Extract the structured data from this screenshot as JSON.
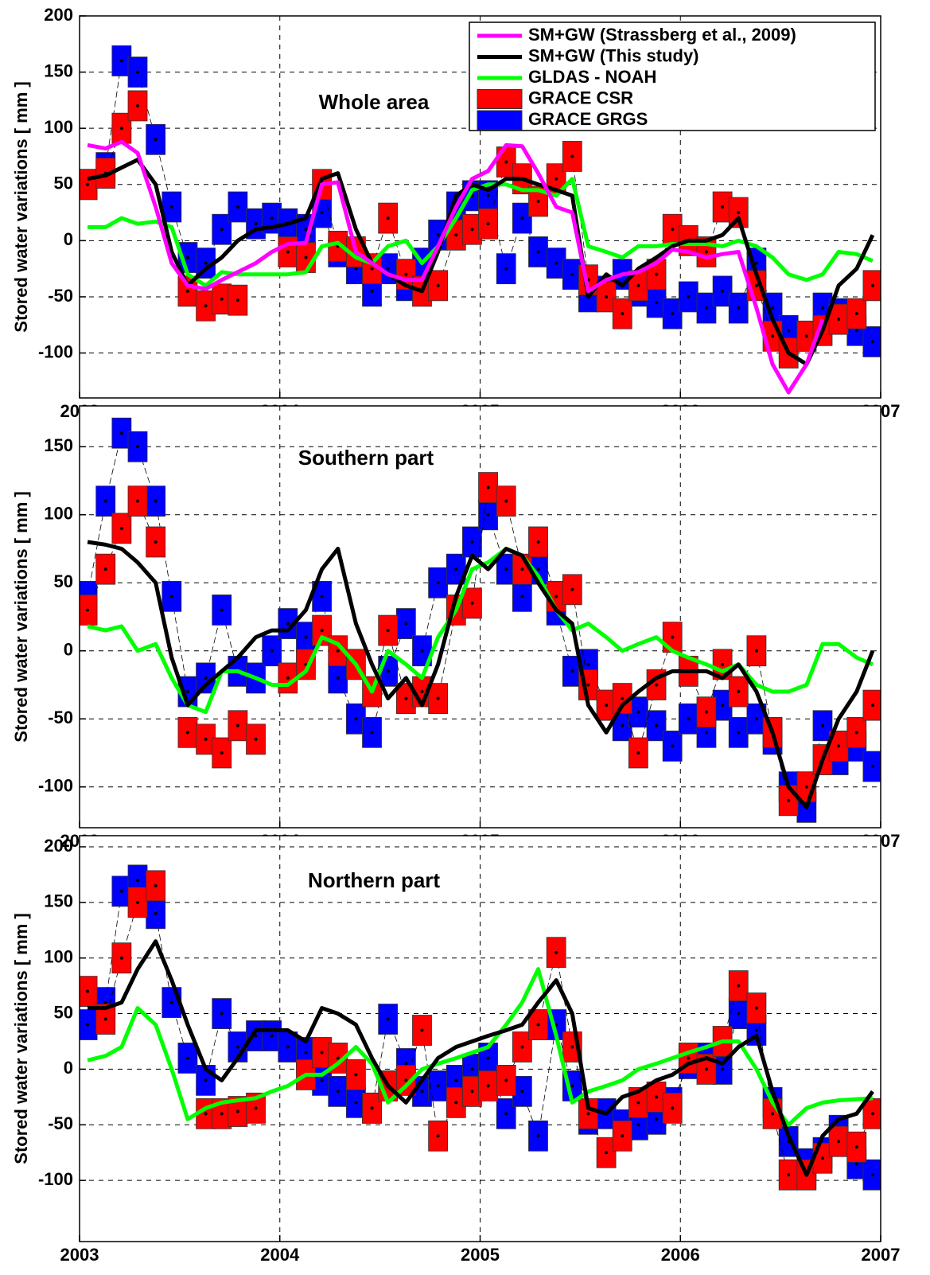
{
  "chart_data": [
    {
      "type": "line",
      "title": "Whole area",
      "ylabel": "Stored water variations [ mm ]",
      "xlim": [
        2003,
        2007
      ],
      "xticks": [
        2003,
        2004,
        2005,
        2006,
        2007
      ],
      "ylim": [
        -140,
        200
      ],
      "yticks": [
        -100,
        -50,
        0,
        50,
        100,
        150,
        200
      ],
      "grid": true,
      "legend": "upper right",
      "x": [
        2003.04,
        2003.13,
        2003.21,
        2003.29,
        2003.38,
        2003.46,
        2003.54,
        2003.63,
        2003.71,
        2003.79,
        2003.88,
        2003.96,
        2004.04,
        2004.13,
        2004.21,
        2004.29,
        2004.38,
        2004.46,
        2004.54,
        2004.63,
        2004.71,
        2004.79,
        2004.88,
        2004.96,
        2005.04,
        2005.13,
        2005.21,
        2005.29,
        2005.38,
        2005.46,
        2005.54,
        2005.63,
        2005.71,
        2005.79,
        2005.88,
        2005.96,
        2006.04,
        2006.13,
        2006.21,
        2006.29,
        2006.38,
        2006.46,
        2006.54,
        2006.63,
        2006.71,
        2006.79,
        2006.88,
        2006.96
      ],
      "series": [
        {
          "name": "SM+GW (Strassberg et al., 2009)",
          "color": "#ff00ff",
          "mark": "line",
          "values": [
            85,
            82,
            88,
            78,
            30,
            -20,
            -40,
            -43,
            -35,
            -28,
            -20,
            -10,
            -3,
            -2,
            50,
            52,
            -10,
            -20,
            -30,
            -35,
            -35,
            -5,
            30,
            55,
            62,
            85,
            84,
            60,
            30,
            25,
            -45,
            -35,
            -30,
            -28,
            -20,
            -8,
            -10,
            -15,
            -12,
            -10,
            -60,
            -110,
            -135,
            -110,
            -70,
            null,
            null,
            null
          ]
        },
        {
          "name": "SM+GW (This study)",
          "color": "#000000",
          "mark": "line",
          "values": [
            55,
            58,
            65,
            72,
            50,
            -10,
            -40,
            -25,
            -15,
            0,
            10,
            12,
            15,
            20,
            55,
            60,
            10,
            -20,
            -30,
            -40,
            -45,
            -10,
            40,
            50,
            45,
            55,
            55,
            50,
            45,
            40,
            -50,
            -30,
            -40,
            -25,
            -15,
            -5,
            0,
            0,
            5,
            20,
            -30,
            -70,
            -100,
            -110,
            -80,
            -40,
            -25,
            5
          ]
        },
        {
          "name": "GLDAS - NOAH",
          "color": "#00ff00",
          "mark": "line",
          "values": [
            12,
            12,
            20,
            15,
            17,
            12,
            -30,
            -40,
            -28,
            -30,
            -30,
            -30,
            -30,
            -28,
            -5,
            -2,
            -15,
            -20,
            -5,
            0,
            -20,
            -5,
            20,
            45,
            50,
            50,
            45,
            45,
            40,
            55,
            -5,
            -10,
            -15,
            -5,
            -5,
            -3,
            -3,
            -3,
            -5,
            0,
            -5,
            -15,
            -30,
            -35,
            -30,
            -10,
            -12,
            -18
          ]
        },
        {
          "name": "GRACE CSR",
          "color": "#ff0000",
          "mark": "box",
          "values": [
            50,
            60,
            100,
            120,
            null,
            null,
            -45,
            -58,
            -52,
            -53,
            null,
            null,
            -10,
            -15,
            50,
            -5,
            -10,
            -25,
            20,
            -30,
            -45,
            -40,
            5,
            10,
            15,
            70,
            55,
            35,
            55,
            75,
            -35,
            -50,
            -65,
            -40,
            -30,
            10,
            0,
            -10,
            30,
            25,
            -40,
            -85,
            -100,
            -85,
            -80,
            -70,
            -65,
            -40
          ]
        },
        {
          "name": "GRACE GRGS",
          "color": "#0000ff",
          "mark": "box",
          "values": [
            50,
            65,
            160,
            150,
            90,
            30,
            -15,
            -20,
            10,
            30,
            15,
            20,
            15,
            10,
            25,
            -10,
            -25,
            -45,
            -25,
            -40,
            -20,
            5,
            30,
            40,
            40,
            -25,
            20,
            -10,
            -20,
            -30,
            -50,
            -45,
            -30,
            -45,
            -55,
            -65,
            -50,
            -60,
            -45,
            -60,
            -20,
            -60,
            -80,
            -85,
            -60,
            -65,
            -80,
            -90
          ]
        }
      ]
    },
    {
      "type": "line",
      "title": "Southern part",
      "ylabel": "Stored water variations [ mm ]",
      "xlim": [
        2003,
        2007
      ],
      "xticks": [
        2003,
        2004,
        2005,
        2006,
        2007
      ],
      "ylim": [
        -130,
        180
      ],
      "yticks": [
        -100,
        -50,
        0,
        50,
        100,
        150
      ],
      "grid": true,
      "x": [
        2003.04,
        2003.13,
        2003.21,
        2003.29,
        2003.38,
        2003.46,
        2003.54,
        2003.63,
        2003.71,
        2003.79,
        2003.88,
        2003.96,
        2004.04,
        2004.13,
        2004.21,
        2004.29,
        2004.38,
        2004.46,
        2004.54,
        2004.63,
        2004.71,
        2004.79,
        2004.88,
        2004.96,
        2005.04,
        2005.13,
        2005.21,
        2005.29,
        2005.38,
        2005.46,
        2005.54,
        2005.63,
        2005.71,
        2005.79,
        2005.88,
        2005.96,
        2006.04,
        2006.13,
        2006.21,
        2006.29,
        2006.38,
        2006.46,
        2006.54,
        2006.63,
        2006.71,
        2006.79,
        2006.88,
        2006.96
      ],
      "series": [
        {
          "color": "#000000",
          "mark": "line",
          "values": [
            80,
            78,
            75,
            65,
            50,
            -5,
            -40,
            -25,
            -15,
            -5,
            10,
            15,
            15,
            30,
            60,
            75,
            20,
            -10,
            -35,
            -20,
            -40,
            -10,
            40,
            70,
            60,
            75,
            70,
            50,
            30,
            20,
            -40,
            -60,
            -40,
            -30,
            -20,
            -15,
            -15,
            -15,
            -20,
            -10,
            -30,
            -60,
            -100,
            -115,
            -80,
            -50,
            -30,
            0
          ]
        },
        {
          "color": "#00ff00",
          "mark": "line",
          "values": [
            18,
            15,
            18,
            0,
            5,
            -20,
            -40,
            -45,
            -15,
            -15,
            -20,
            -25,
            -25,
            -15,
            10,
            5,
            -10,
            -30,
            0,
            -10,
            -20,
            10,
            30,
            60,
            65,
            75,
            70,
            55,
            30,
            15,
            20,
            10,
            0,
            5,
            10,
            0,
            -5,
            -10,
            -15,
            -10,
            -25,
            -30,
            -30,
            -25,
            5,
            5,
            -5,
            -10
          ]
        },
        {
          "color": "#ff0000",
          "mark": "box",
          "values": [
            30,
            60,
            90,
            110,
            80,
            null,
            -60,
            -65,
            -75,
            -55,
            -65,
            null,
            -20,
            -10,
            15,
            0,
            -10,
            -30,
            15,
            -35,
            -30,
            -35,
            30,
            35,
            120,
            110,
            60,
            80,
            40,
            45,
            -25,
            -40,
            -35,
            -75,
            -25,
            10,
            -15,
            -45,
            -10,
            -30,
            0,
            -60,
            -110,
            -100,
            -80,
            -70,
            -60,
            -40
          ]
        },
        {
          "color": "#0000ff",
          "mark": "box",
          "values": [
            40,
            110,
            160,
            150,
            110,
            40,
            -30,
            -20,
            30,
            -15,
            -20,
            0,
            20,
            10,
            40,
            -20,
            -50,
            -60,
            -15,
            20,
            0,
            50,
            60,
            80,
            100,
            60,
            40,
            60,
            30,
            -15,
            -10,
            -40,
            -55,
            -45,
            -55,
            -70,
            -50,
            -60,
            -40,
            -60,
            -50,
            -65,
            -100,
            -115,
            -55,
            -80,
            -70,
            -85
          ]
        }
      ]
    },
    {
      "type": "line",
      "title": "Northern part",
      "ylabel": "Stored water variations [ mm ]",
      "xlim": [
        2003,
        2007
      ],
      "xticks": [
        2003,
        2004,
        2005,
        2006,
        2007
      ],
      "ylim": [
        -155,
        210
      ],
      "yticks": [
        -100,
        -50,
        0,
        50,
        100,
        150,
        200
      ],
      "grid": true,
      "x": [
        2003.04,
        2003.13,
        2003.21,
        2003.29,
        2003.38,
        2003.46,
        2003.54,
        2003.63,
        2003.71,
        2003.79,
        2003.88,
        2003.96,
        2004.04,
        2004.13,
        2004.21,
        2004.29,
        2004.38,
        2004.46,
        2004.54,
        2004.63,
        2004.71,
        2004.79,
        2004.88,
        2004.96,
        2005.04,
        2005.13,
        2005.21,
        2005.29,
        2005.38,
        2005.46,
        2005.54,
        2005.63,
        2005.71,
        2005.79,
        2005.88,
        2005.96,
        2006.04,
        2006.13,
        2006.21,
        2006.29,
        2006.38,
        2006.46,
        2006.54,
        2006.63,
        2006.71,
        2006.79,
        2006.88,
        2006.96
      ],
      "series": [
        {
          "color": "#000000",
          "mark": "line",
          "values": [
            55,
            55,
            60,
            90,
            115,
            80,
            40,
            0,
            -10,
            10,
            35,
            35,
            35,
            25,
            55,
            50,
            40,
            10,
            -15,
            -30,
            -10,
            10,
            20,
            25,
            30,
            35,
            40,
            60,
            80,
            50,
            -35,
            -40,
            -25,
            -20,
            -10,
            -5,
            5,
            10,
            5,
            20,
            30,
            -20,
            -60,
            -95,
            -60,
            -45,
            -40,
            -20
          ]
        },
        {
          "color": "#00ff00",
          "mark": "line",
          "values": [
            8,
            12,
            20,
            55,
            40,
            0,
            -45,
            -35,
            -30,
            -28,
            -26,
            -20,
            -15,
            -5,
            -5,
            5,
            20,
            5,
            -30,
            -15,
            0,
            5,
            10,
            15,
            20,
            40,
            60,
            90,
            30,
            -30,
            -20,
            -15,
            -10,
            0,
            5,
            10,
            15,
            20,
            25,
            25,
            0,
            -30,
            -50,
            -35,
            -30,
            -28,
            -27,
            -26
          ]
        },
        {
          "color": "#ff0000",
          "mark": "box",
          "values": [
            70,
            45,
            100,
            150,
            165,
            null,
            null,
            -40,
            -40,
            -38,
            -35,
            null,
            null,
            -5,
            15,
            10,
            -5,
            -35,
            -15,
            -10,
            35,
            -60,
            -30,
            -20,
            -15,
            -10,
            20,
            40,
            105,
            20,
            -40,
            -75,
            -60,
            -30,
            -25,
            -35,
            10,
            0,
            25,
            75,
            55,
            -40,
            -95,
            -95,
            -80,
            -65,
            -70,
            -40
          ]
        },
        {
          "color": "#0000ff",
          "mark": "box",
          "values": [
            40,
            60,
            160,
            170,
            140,
            60,
            10,
            -10,
            50,
            20,
            30,
            30,
            20,
            15,
            -10,
            -20,
            -30,
            -35,
            45,
            5,
            -20,
            -15,
            -10,
            0,
            10,
            -40,
            -20,
            -60,
            40,
            -15,
            -45,
            -40,
            -50,
            -50,
            -45,
            -30,
            5,
            10,
            0,
            50,
            35,
            -30,
            -65,
            -85,
            -75,
            -55,
            -85,
            -95
          ]
        }
      ]
    }
  ]
}
